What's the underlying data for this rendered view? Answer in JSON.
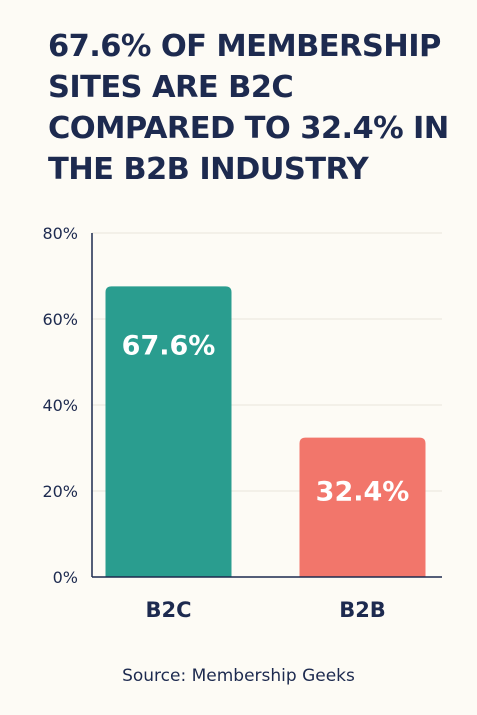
{
  "chart_data": {
    "type": "bar",
    "title": "67.6% OF MEMBERSHIP SITES ARE B2C COMPARED TO 32.4% IN THE B2B INDUSTRY",
    "categories": [
      "B2C",
      "B2B"
    ],
    "values": [
      67.6,
      32.4
    ],
    "data_labels": [
      "67.6%",
      "32.4%"
    ],
    "ylim": [
      0,
      80
    ],
    "yticks": [
      0,
      20,
      40,
      60,
      80
    ],
    "ytick_labels": [
      "0%",
      "20%",
      "40%",
      "60%",
      "80%"
    ],
    "xlabel": "",
    "ylabel": "",
    "grid": true,
    "legend": "none",
    "colors": [
      "#2a9d8f",
      "#f2766b"
    ]
  },
  "source": "Source: Membership Geeks"
}
